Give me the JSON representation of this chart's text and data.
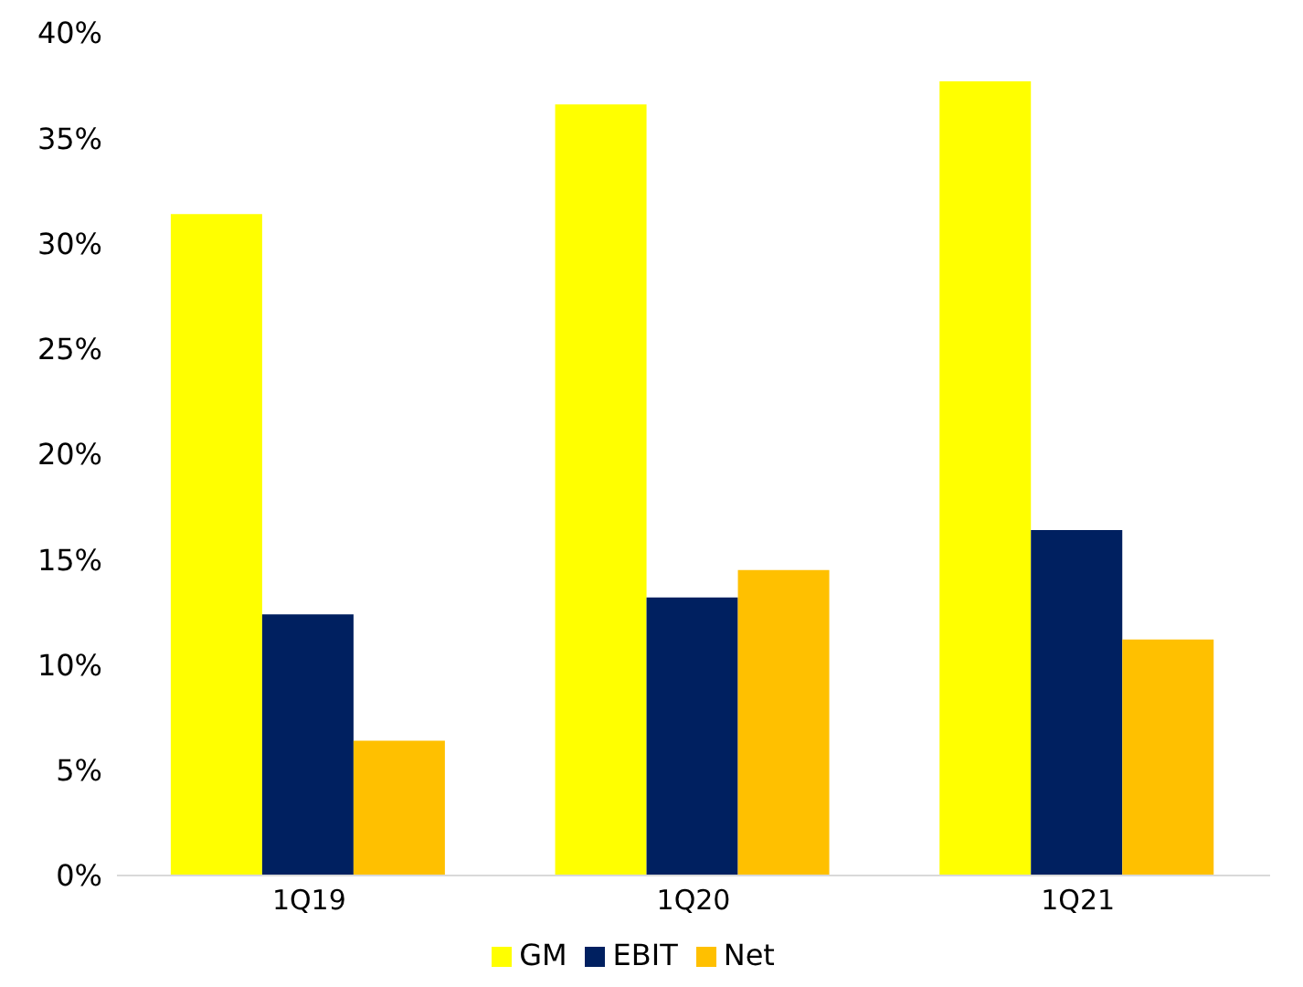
{
  "chart_data": {
    "type": "bar",
    "categories": [
      "1Q19",
      "1Q20",
      "1Q21"
    ],
    "series": [
      {
        "name": "GM",
        "color": "#ffff00",
        "values": [
          31.4,
          36.6,
          37.7
        ]
      },
      {
        "name": "EBIT",
        "color": "#002060",
        "values": [
          12.4,
          13.2,
          16.4
        ]
      },
      {
        "name": "Net",
        "color": "#ffc000",
        "values": [
          6.4,
          14.5,
          11.2
        ]
      }
    ],
    "ylim": [
      0,
      40
    ],
    "yticks": [
      {
        "value": 0,
        "label": "0%"
      },
      {
        "value": 5,
        "label": "5%"
      },
      {
        "value": 10,
        "label": "10%"
      },
      {
        "value": 15,
        "label": "15%"
      },
      {
        "value": 20,
        "label": "20%"
      },
      {
        "value": 25,
        "label": "25%"
      },
      {
        "value": 30,
        "label": "30%"
      },
      {
        "value": 35,
        "label": "35%"
      },
      {
        "value": 40,
        "label": "40%"
      }
    ],
    "grid": false,
    "legend": "bottom"
  }
}
